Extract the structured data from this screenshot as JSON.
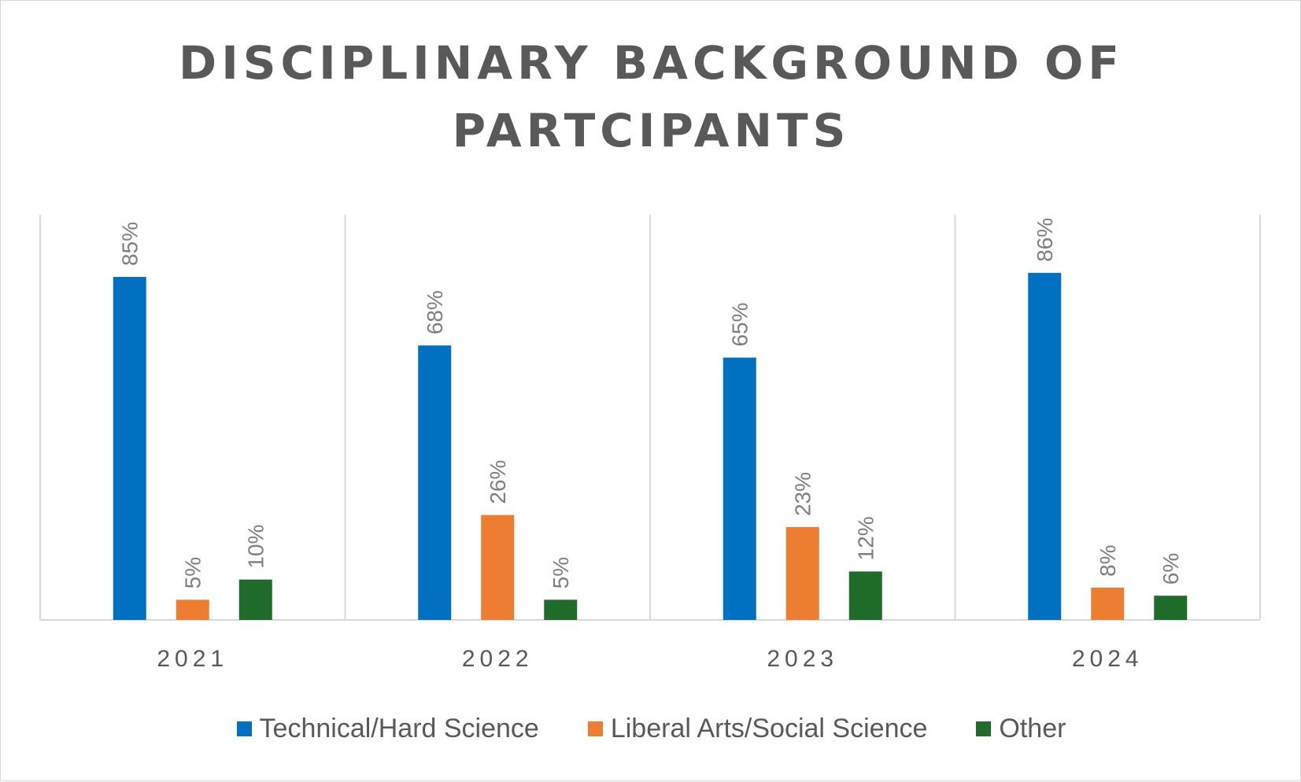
{
  "chart_data": {
    "type": "bar",
    "title": "DISCIPLINARY BACKGROUND OF PARTCIPANTS",
    "categories": [
      "2021",
      "2022",
      "2023",
      "2024"
    ],
    "series": [
      {
        "name": "Technical/Hard Science",
        "color": "#0070c0",
        "values": [
          85,
          68,
          65,
          86
        ],
        "labels": [
          "85%",
          "68%",
          "65%",
          "86%"
        ]
      },
      {
        "name": "Liberal Arts/Social Science",
        "color": "#ed7d31",
        "values": [
          5,
          26,
          23,
          8
        ],
        "labels": [
          "5%",
          "26%",
          "23%",
          "8%"
        ]
      },
      {
        "name": "Other",
        "color": "#1e6b2a",
        "values": [
          10,
          5,
          12,
          6
        ],
        "labels": [
          "10%",
          "5%",
          "12%",
          "6%"
        ]
      }
    ],
    "ylim": [
      0,
      100
    ],
    "grid": "vertical category separators",
    "legend_position": "bottom",
    "data_labels": "rotated vertical above bars"
  }
}
